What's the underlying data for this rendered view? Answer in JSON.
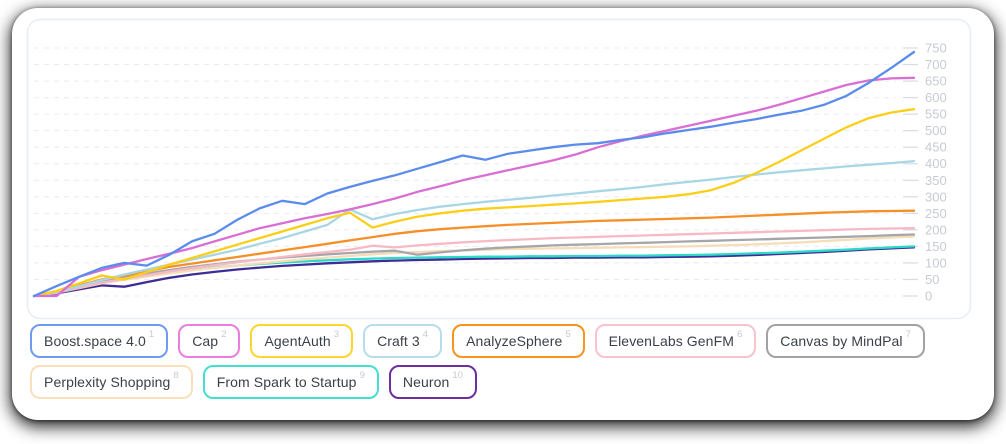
{
  "chart_data": {
    "type": "line",
    "title": "",
    "xlabel": "",
    "ylabel": "",
    "ylim": [
      0,
      750
    ],
    "yticks": [
      0,
      50,
      100,
      150,
      200,
      250,
      300,
      350,
      400,
      450,
      500,
      550,
      600,
      650,
      700,
      750
    ],
    "grid": "horizontal-dashed",
    "legend_position": "bottom",
    "colors": {
      "grid_line": "#e9ecf2",
      "tick_mark": "#d8dbe1",
      "tick_label": "#c6cbd4",
      "plot_border": "#e7edf4",
      "chip_text": "#3a4049",
      "chip_rank": "#c5c9d1",
      "card_background": "#ffffff"
    },
    "series": [
      {
        "rank": "1",
        "name": "Boost.space 4.0",
        "color": "#5b8ceb",
        "chip_color": "#6f9af0",
        "values": [
          0,
          30,
          58,
          85,
          100,
          92,
          125,
          165,
          188,
          230,
          265,
          288,
          278,
          310,
          330,
          348,
          365,
          385,
          405,
          425,
          412,
          430,
          440,
          450,
          458,
          462,
          472,
          480,
          492,
          502,
          512,
          524,
          535,
          548,
          560,
          578,
          605,
          645,
          690,
          738
        ]
      },
      {
        "rank": "2",
        "name": "Cap",
        "color": "#d96fd4",
        "chip_color": "#ea7ede",
        "values": [
          0,
          0,
          58,
          78,
          95,
          112,
          128,
          145,
          165,
          185,
          205,
          220,
          235,
          248,
          262,
          278,
          295,
          315,
          332,
          350,
          365,
          380,
          395,
          410,
          428,
          450,
          468,
          485,
          500,
          515,
          530,
          545,
          560,
          578,
          598,
          618,
          638,
          652,
          658,
          660
        ]
      },
      {
        "rank": "3",
        "name": "AgentAuth",
        "color": "#fbce18",
        "chip_color": "#fdd531",
        "values": [
          0,
          15,
          38,
          62,
          50,
          72,
          95,
          115,
          135,
          155,
          175,
          195,
          215,
          235,
          252,
          207,
          225,
          240,
          250,
          258,
          264,
          268,
          272,
          276,
          280,
          285,
          290,
          295,
          300,
          308,
          320,
          342,
          372,
          405,
          440,
          475,
          510,
          538,
          555,
          565
        ]
      },
      {
        "rank": "4",
        "name": "Craft 3",
        "color": "#a9d6e5",
        "chip_color": "#b9dcec",
        "values": [
          0,
          12,
          30,
          48,
          65,
          80,
          95,
          110,
          125,
          140,
          158,
          175,
          195,
          215,
          262,
          232,
          248,
          260,
          270,
          278,
          285,
          291,
          297,
          304,
          310,
          317,
          323,
          330,
          338,
          345,
          352,
          360,
          367,
          374,
          380,
          386,
          392,
          397,
          402,
          408
        ]
      },
      {
        "rank": "5",
        "name": "AnalyzeSphere",
        "color": "#f78f28",
        "chip_color": "#f7941e",
        "values": [
          0,
          14,
          32,
          50,
          62,
          75,
          88,
          98,
          108,
          118,
          128,
          138,
          148,
          158,
          168,
          178,
          188,
          196,
          202,
          207,
          211,
          215,
          218,
          221,
          224,
          227,
          229,
          231,
          233,
          235,
          237,
          240,
          243,
          246,
          249,
          252,
          254,
          256,
          257,
          258
        ]
      },
      {
        "rank": "6",
        "name": "ElevenLabs GenFM",
        "color": "#f7b9c4",
        "chip_color": "#f9c3cd",
        "values": [
          0,
          10,
          25,
          40,
          52,
          63,
          74,
          84,
          93,
          102,
          110,
          118,
          126,
          133,
          140,
          152,
          147,
          153,
          158,
          162,
          166,
          169,
          172,
          175,
          177,
          179,
          181,
          183,
          185,
          187,
          189,
          191,
          193,
          195,
          197,
          199,
          201,
          203,
          204,
          205
        ]
      },
      {
        "rank": "7",
        "name": "Canvas by MindPal",
        "color": "#a6a6aa",
        "chip_color": "#a2a2a6",
        "values": [
          0,
          12,
          28,
          44,
          56,
          68,
          78,
          88,
          96,
          104,
          110,
          116,
          121,
          126,
          130,
          134,
          137,
          125,
          132,
          138,
          143,
          147,
          150,
          153,
          155,
          157,
          159,
          161,
          163,
          165,
          167,
          169,
          171,
          173,
          175,
          177,
          179,
          181,
          184,
          186
        ]
      },
      {
        "rank": "8",
        "name": "Perplexity Shopping",
        "color": "#f5ddb8",
        "chip_color": "#f8e0bc",
        "values": [
          0,
          10,
          24,
          38,
          49,
          59,
          68,
          77,
          85,
          92,
          99,
          105,
          111,
          116,
          121,
          126,
          130,
          133,
          136,
          138,
          140,
          142,
          143,
          144,
          145,
          146,
          147,
          148,
          149,
          150,
          152,
          154,
          156,
          159,
          162,
          166,
          170,
          174,
          177,
          180
        ]
      },
      {
        "rank": "9",
        "name": "From Spark to Startup",
        "color": "#2fd8c8",
        "chip_color": "#43e0d0",
        "values": [
          0,
          11,
          26,
          40,
          52,
          62,
          71,
          79,
          86,
          92,
          97,
          101,
          105,
          108,
          111,
          113,
          115,
          116,
          117,
          118,
          119,
          119,
          120,
          120,
          121,
          121,
          122,
          122,
          123,
          124,
          125,
          127,
          129,
          131,
          134,
          137,
          140,
          144,
          147,
          150
        ]
      },
      {
        "rank": "10",
        "name": "Neuron",
        "color": "#3f2d96",
        "chip_color": "#6d2f9f",
        "values": [
          0,
          8,
          20,
          32,
          28,
          42,
          55,
          65,
          73,
          80,
          86,
          91,
          95,
          99,
          102,
          105,
          107,
          109,
          110,
          112,
          113,
          114,
          115,
          115,
          116,
          116,
          117,
          117,
          118,
          119,
          120,
          122,
          124,
          127,
          130,
          133,
          137,
          141,
          144,
          147
        ]
      }
    ]
  }
}
